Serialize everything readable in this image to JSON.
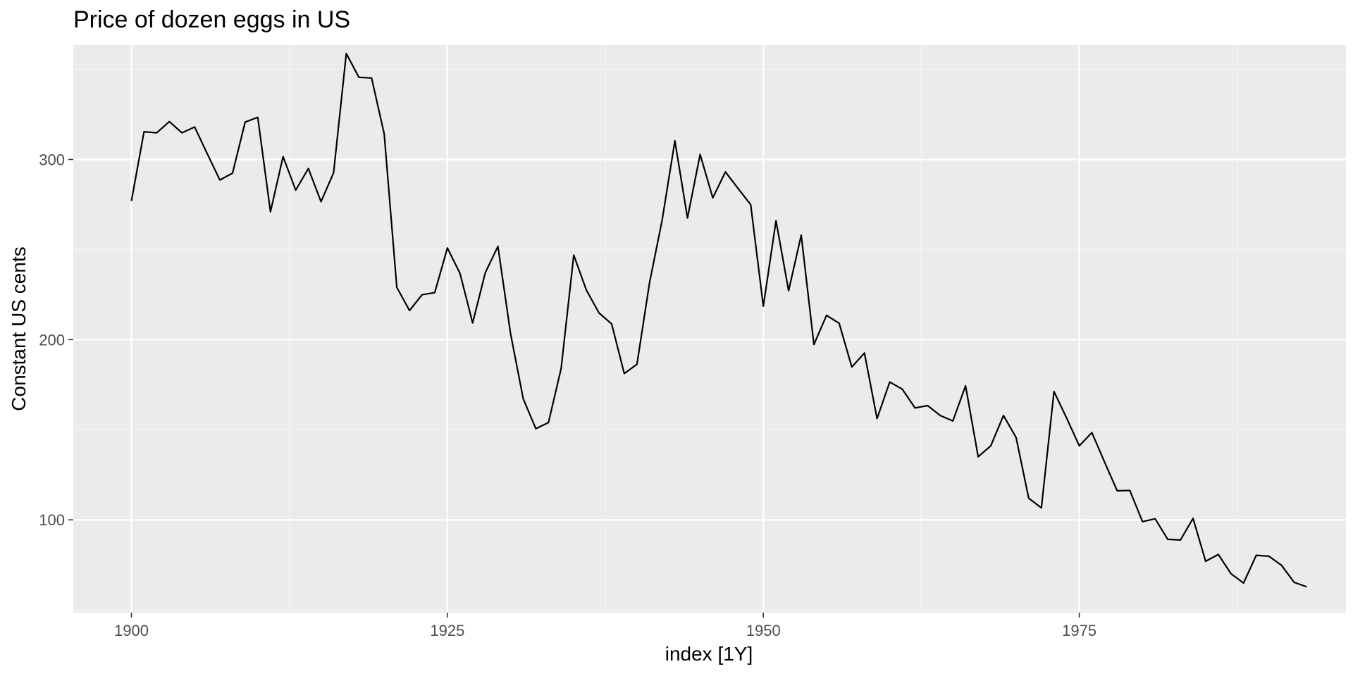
{
  "chart_data": {
    "type": "line",
    "title": "Price of dozen eggs in US",
    "xlabel": "index [1Y]",
    "ylabel": "Constant US cents",
    "xlim": [
      1895.4,
      1996.1
    ],
    "ylim": [
      48.5,
      363.5
    ],
    "x_ticks": [
      1900,
      1925,
      1950,
      1975
    ],
    "x_tick_labels": [
      "1900",
      "1925",
      "1950",
      "1975"
    ],
    "y_ticks": [
      100,
      200,
      300
    ],
    "y_tick_labels": [
      "100",
      "200",
      "300"
    ],
    "grid": true,
    "legend": "none",
    "colors": {
      "panel_background": "#ebebeb",
      "grid_major": "#ffffff",
      "grid_minor": "#f5f5f5",
      "line": "#000000",
      "tick_label": "#4d4d4d"
    },
    "series": [
      {
        "x": [
          1900,
          1901,
          1902,
          1903,
          1904,
          1905,
          1906,
          1907,
          1908,
          1909,
          1910,
          1911,
          1912,
          1913,
          1914,
          1915,
          1916,
          1917,
          1918,
          1919,
          1920,
          1921,
          1922,
          1923,
          1924,
          1925,
          1926,
          1927,
          1928,
          1929,
          1930,
          1931,
          1932,
          1933,
          1934,
          1935,
          1936,
          1937,
          1938,
          1939,
          1940,
          1941,
          1942,
          1943,
          1944,
          1945,
          1946,
          1947,
          1948,
          1949,
          1950,
          1951,
          1952,
          1953,
          1954,
          1955,
          1956,
          1957,
          1958,
          1959,
          1960,
          1961,
          1962,
          1963,
          1964,
          1965,
          1966,
          1967,
          1968,
          1969,
          1970,
          1971,
          1972,
          1973,
          1974,
          1975,
          1976,
          1977,
          1978,
          1979,
          1980,
          1981,
          1982,
          1983,
          1984,
          1985,
          1986,
          1987,
          1988,
          1989,
          1990,
          1991,
          1992,
          1993
        ],
        "values": [
          277.0,
          315.4,
          314.8,
          321.0,
          314.8,
          318.0,
          303.2,
          288.6,
          292.4,
          320.8,
          323.4,
          271.0,
          301.6,
          283.0,
          295.0,
          276.6,
          292.6,
          358.8,
          345.6,
          345.2,
          314.2,
          229.0,
          216.2,
          224.9,
          226.1,
          250.9,
          236.7,
          209.3,
          237.2,
          251.8,
          203.4,
          167.2,
          150.6,
          154.0,
          184.0,
          246.9,
          227.5,
          214.8,
          208.7,
          181.2,
          186.4,
          231.7,
          266.5,
          310.4,
          267.5,
          302.8,
          278.7,
          293.1,
          283.9,
          274.9,
          218.5,
          266.0,
          227.2,
          258.0,
          197.3,
          213.5,
          209.1,
          184.8,
          192.6,
          156.2,
          176.5,
          172.5,
          162.1,
          163.4,
          157.9,
          154.9,
          174.4,
          135.0,
          141.1,
          157.9,
          145.7,
          112.0,
          106.6,
          171.2,
          156.5,
          141.1,
          148.4,
          132.0,
          116.1,
          116.3,
          99.0,
          100.6,
          89.2,
          88.8,
          100.8,
          77.0,
          80.8,
          70.1,
          64.9,
          80.3,
          79.8,
          74.8,
          65.3,
          62.8
        ]
      }
    ]
  }
}
